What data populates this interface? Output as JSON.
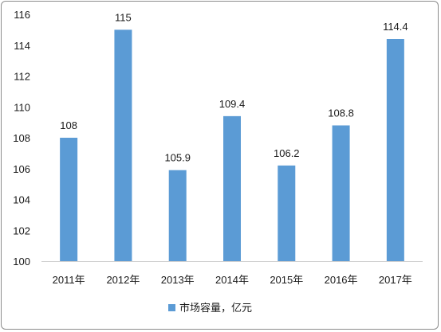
{
  "chart_data": {
    "type": "bar",
    "categories": [
      "2011年",
      "2012年",
      "2013年",
      "2014年",
      "2015年",
      "2016年",
      "2017年"
    ],
    "series": [
      {
        "name": "市场容量，亿元",
        "values": [
          108,
          115,
          105.9,
          109.4,
          106.2,
          108.8,
          114.4
        ],
        "labels": [
          "108",
          "115",
          "105.9",
          "109.4",
          "106.2",
          "108.8",
          "114.4"
        ]
      }
    ],
    "title": "",
    "xlabel": "",
    "ylabel": "",
    "ylim": [
      100,
      116
    ],
    "yticks": [
      "100",
      "102",
      "104",
      "106",
      "108",
      "110",
      "112",
      "114",
      "116"
    ],
    "grid": false,
    "legend": "bottom",
    "bar_color": "#5b9bd5"
  }
}
